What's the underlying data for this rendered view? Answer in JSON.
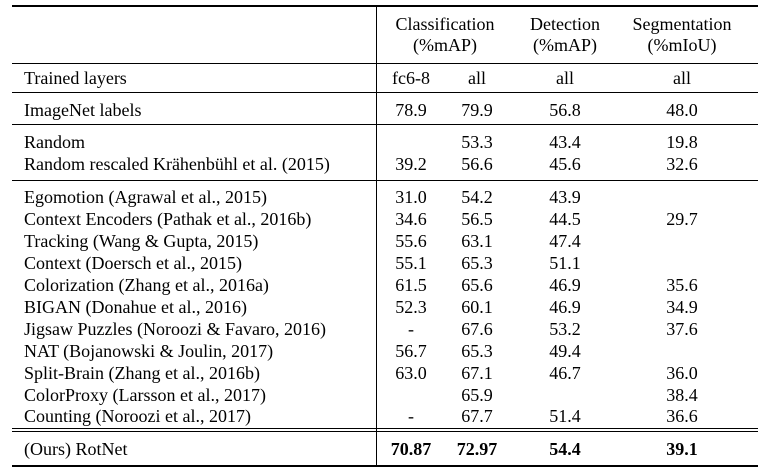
{
  "header": {
    "classification": [
      "Classification",
      "(%mAP)"
    ],
    "detection": [
      "Detection",
      "(%mAP)"
    ],
    "segmentation": [
      "Segmentation",
      "(%mIoU)"
    ]
  },
  "trained_layers": {
    "label": "Trained layers",
    "fc": "fc6-8",
    "cls_all": "all",
    "det": "all",
    "seg": "all"
  },
  "rows": [
    {
      "method": "ImageNet labels",
      "fc": "78.9",
      "all": "79.9",
      "det": "56.8",
      "seg": "48.0"
    },
    {
      "method": "Random",
      "fc": "",
      "all": "53.3",
      "det": "43.4",
      "seg": "19.8"
    },
    {
      "method": "Random rescaled Krähenbühl et al. (2015)",
      "fc": "39.2",
      "all": "56.6",
      "det": "45.6",
      "seg": "32.6"
    },
    {
      "method": "Egomotion (Agrawal et al., 2015)",
      "fc": "31.0",
      "all": "54.2",
      "det": "43.9",
      "seg": ""
    },
    {
      "method": "Context Encoders (Pathak et al., 2016b)",
      "fc": "34.6",
      "all": "56.5",
      "det": "44.5",
      "seg": "29.7"
    },
    {
      "method": "Tracking (Wang & Gupta, 2015)",
      "fc": "55.6",
      "all": "63.1",
      "det": "47.4",
      "seg": ""
    },
    {
      "method": "Context (Doersch et al., 2015)",
      "fc": "55.1",
      "all": "65.3",
      "det": "51.1",
      "seg": ""
    },
    {
      "method": "Colorization (Zhang et al., 2016a)",
      "fc": "61.5",
      "all": "65.6",
      "det": "46.9",
      "seg": "35.6"
    },
    {
      "method": "BIGAN (Donahue et al., 2016)",
      "fc": "52.3",
      "all": "60.1",
      "det": "46.9",
      "seg": "34.9"
    },
    {
      "method": "Jigsaw Puzzles (Noroozi & Favaro, 2016)",
      "fc": "-",
      "all": "67.6",
      "det": "53.2",
      "seg": "37.6"
    },
    {
      "method": "NAT (Bojanowski & Joulin, 2017)",
      "fc": "56.7",
      "all": "65.3",
      "det": "49.4",
      "seg": ""
    },
    {
      "method": "Split-Brain (Zhang et al., 2016b)",
      "fc": "63.0",
      "all": "67.1",
      "det": "46.7",
      "seg": "36.0"
    },
    {
      "method": "ColorProxy (Larsson et al., 2017)",
      "fc": "",
      "all": "65.9",
      "det": "",
      "seg": "38.4"
    },
    {
      "method": "Counting (Noroozi et al., 2017)",
      "fc": "-",
      "all": "67.7",
      "det": "51.4",
      "seg": "36.6"
    },
    {
      "method": "(Ours) RotNet",
      "fc": "70.87",
      "all": "72.97",
      "det": "54.4",
      "seg": "39.1"
    }
  ]
}
